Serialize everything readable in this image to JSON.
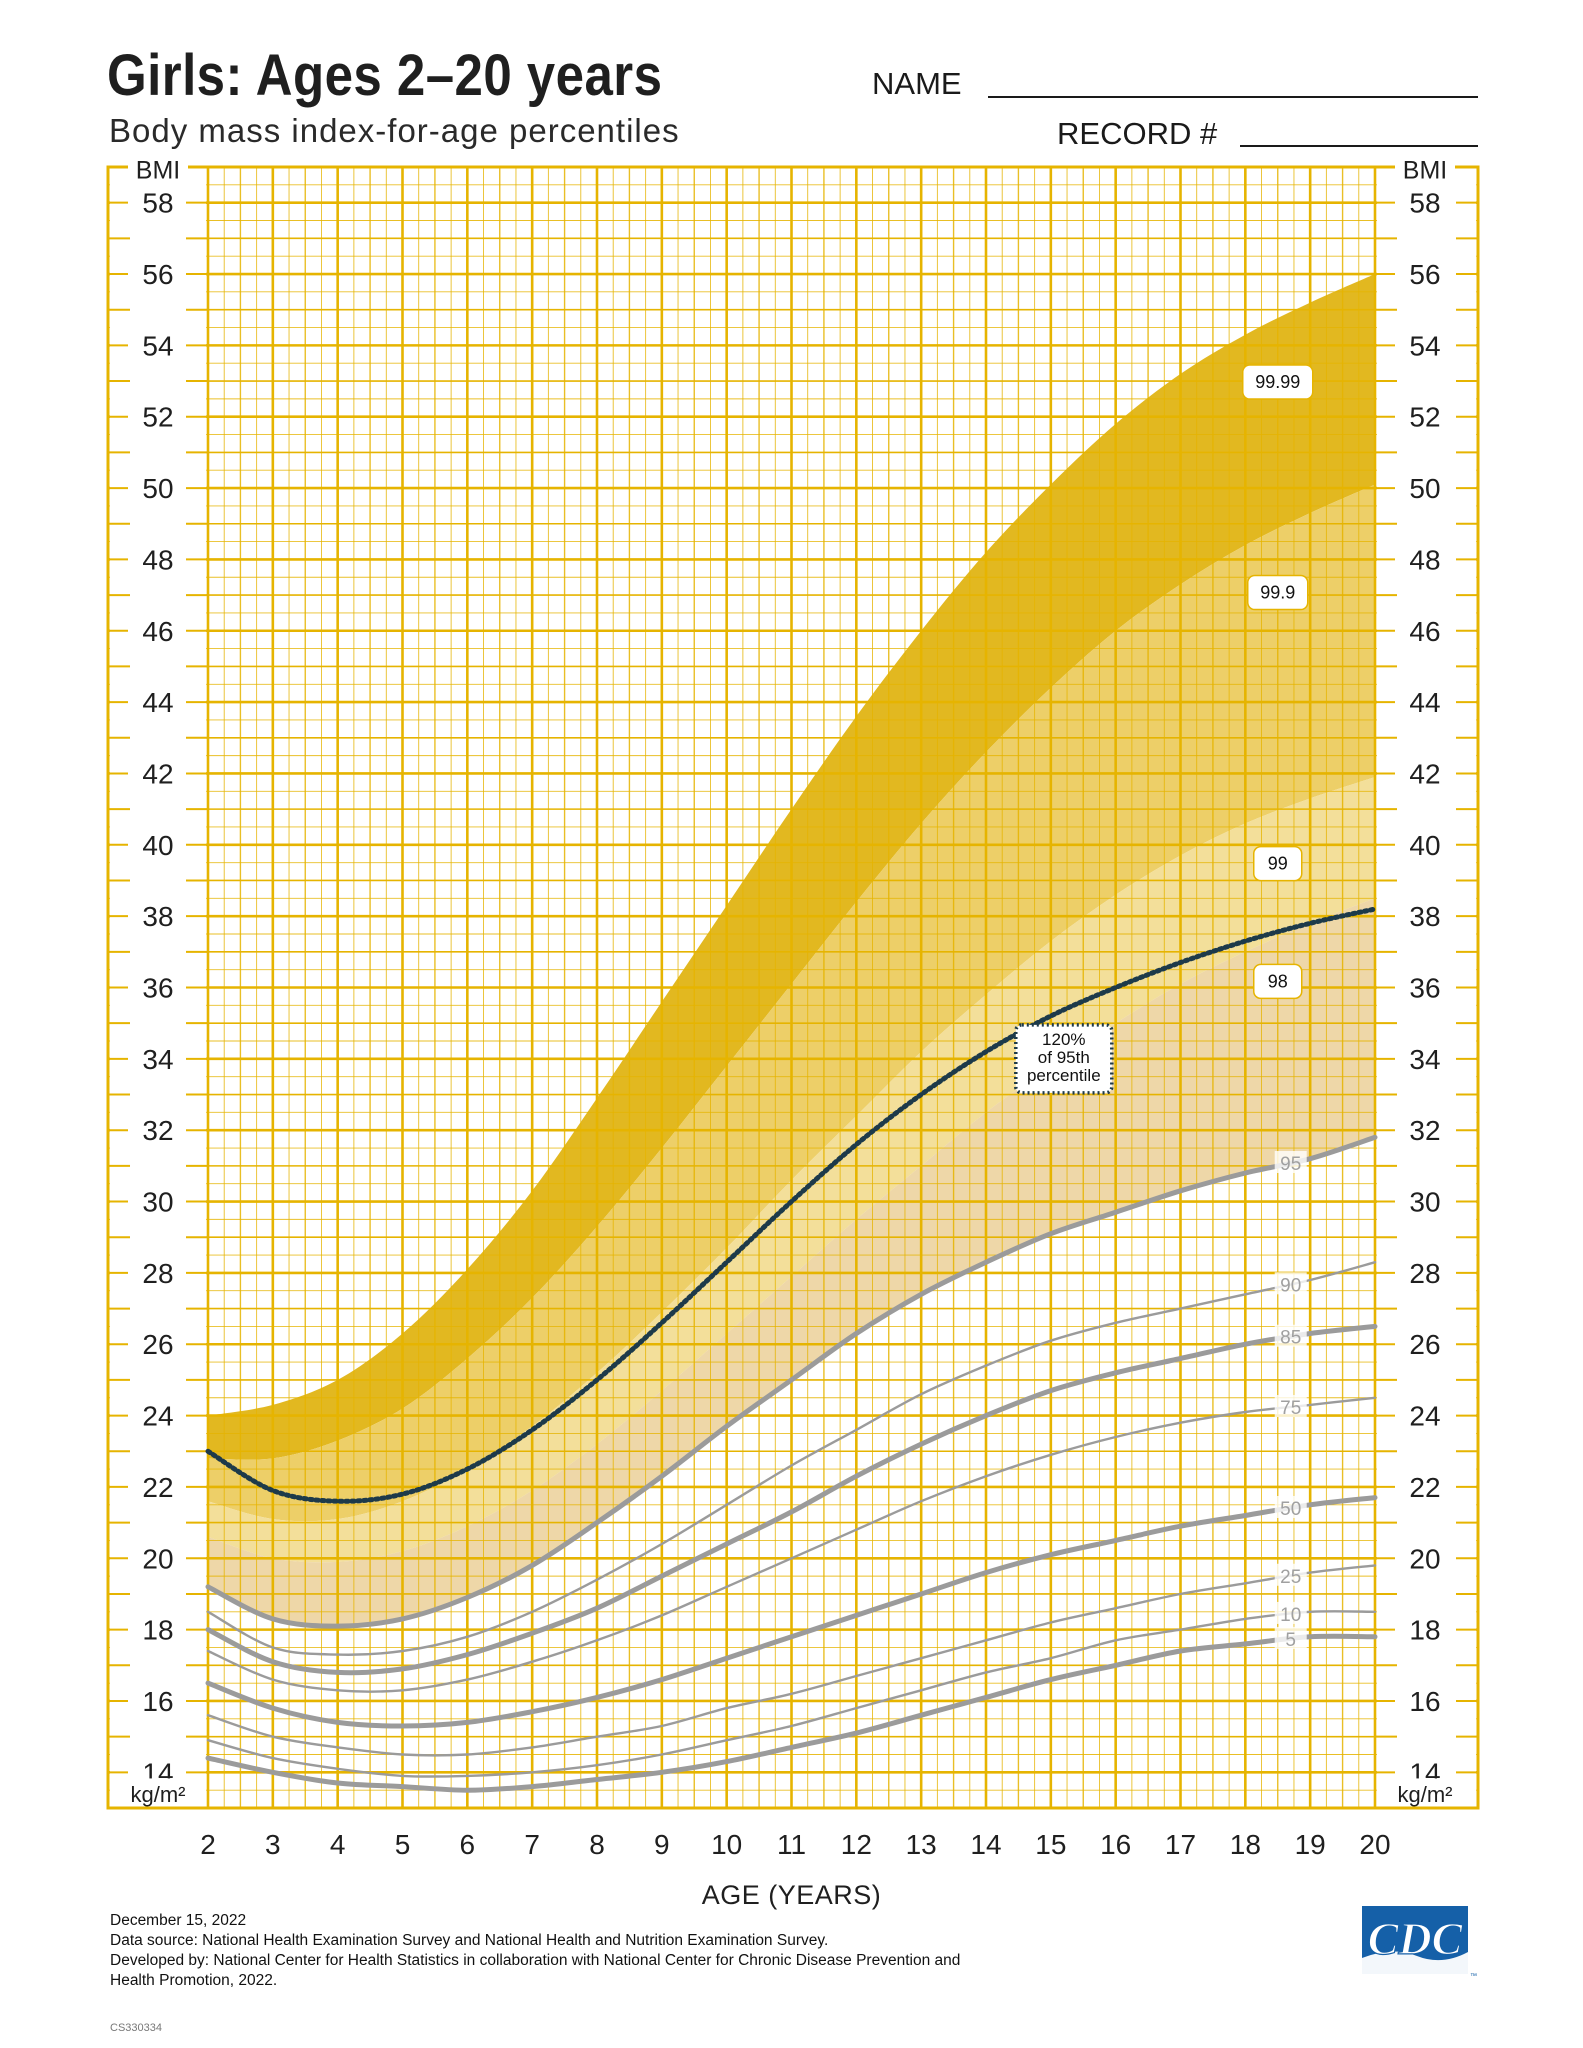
{
  "header": {
    "title": "Girls: Ages 2–20 years",
    "subtitle": "Body mass index-for-age percentiles",
    "name_label": "NAME",
    "record_label": "RECORD #"
  },
  "footer": {
    "date": "December 15, 2022",
    "line1": "Data source: National Health Examination Survey and National Health and Nutrition Examination Survey.",
    "line2": "Developed by: National Center for Health Statistics in collaboration with National Center for Chronic Disease Prevention and",
    "line3": "Health Promotion, 2022.",
    "code": "CS330334",
    "logo_text": "CDC"
  },
  "colors": {
    "grid": "#e6b400",
    "band_top": "#e2b820",
    "band_999": "#edcf68",
    "band_99": "#f3df9a",
    "band_98": "#f7e9bd",
    "band_95": "#ecd3a5",
    "percentile_line": "#9b9b9b",
    "dotted_line": "#1d3a4a",
    "cdc_blue": "#1560a8"
  },
  "chart_data": {
    "type": "line",
    "xlabel": "AGE (YEARS)",
    "ylabel": "BMI",
    "yunit": "kg/m²",
    "xlim": [
      2,
      20
    ],
    "ylim": [
      13,
      59
    ],
    "xticks": [
      2,
      3,
      4,
      5,
      6,
      7,
      8,
      9,
      10,
      11,
      12,
      13,
      14,
      15,
      16,
      17,
      18,
      19,
      20
    ],
    "yticks": [
      14,
      16,
      18,
      20,
      22,
      24,
      26,
      28,
      30,
      32,
      34,
      36,
      38,
      40,
      42,
      44,
      46,
      48,
      50,
      52,
      54,
      56,
      58
    ],
    "ages": [
      2,
      3,
      4,
      5,
      6,
      7,
      8,
      9,
      10,
      11,
      12,
      13,
      14,
      15,
      16,
      17,
      18,
      19,
      20
    ],
    "series": [
      {
        "name": "99.99",
        "values": [
          24.0,
          24.3,
          25.0,
          26.3,
          28.1,
          30.3,
          32.9,
          35.6,
          38.3,
          41.0,
          43.6,
          46.0,
          48.2,
          50.1,
          51.8,
          53.2,
          54.3,
          55.2,
          56.0
        ]
      },
      {
        "name": "99.9",
        "values": [
          22.8,
          22.8,
          23.3,
          24.2,
          25.6,
          27.3,
          29.3,
          31.5,
          33.8,
          36.1,
          38.4,
          40.6,
          42.6,
          44.4,
          46.0,
          47.3,
          48.4,
          49.3,
          50.1
        ]
      },
      {
        "name": "99",
        "values": [
          21.6,
          21.1,
          21.1,
          21.6,
          22.5,
          23.7,
          25.2,
          26.9,
          28.7,
          30.6,
          32.4,
          34.2,
          35.8,
          37.3,
          38.6,
          39.7,
          40.6,
          41.3,
          41.9
        ]
      },
      {
        "name": "98",
        "values": [
          20.6,
          20.0,
          19.9,
          20.2,
          20.9,
          21.9,
          23.2,
          24.7,
          26.3,
          27.9,
          29.5,
          31.0,
          32.5,
          33.8,
          35.0,
          36.1,
          37.0,
          37.8,
          38.5
        ]
      },
      {
        "name": "120% of 95th percentile",
        "values": [
          23.0,
          21.9,
          21.6,
          21.8,
          22.5,
          23.6,
          25.0,
          26.6,
          28.3,
          30.0,
          31.6,
          33.0,
          34.2,
          35.2,
          36.0,
          36.7,
          37.3,
          37.8,
          38.2
        ]
      },
      {
        "name": "95",
        "values": [
          19.2,
          18.3,
          18.1,
          18.3,
          18.9,
          19.8,
          21.0,
          22.3,
          23.7,
          25.0,
          26.3,
          27.4,
          28.3,
          29.1,
          29.7,
          30.3,
          30.8,
          31.2,
          31.8
        ]
      },
      {
        "name": "90",
        "values": [
          18.5,
          17.5,
          17.3,
          17.4,
          17.8,
          18.5,
          19.4,
          20.4,
          21.5,
          22.6,
          23.6,
          24.6,
          25.4,
          26.1,
          26.6,
          27.0,
          27.4,
          27.8,
          28.3
        ]
      },
      {
        "name": "85",
        "values": [
          18.0,
          17.1,
          16.8,
          16.9,
          17.3,
          17.9,
          18.6,
          19.5,
          20.4,
          21.3,
          22.3,
          23.2,
          24.0,
          24.7,
          25.2,
          25.6,
          26.0,
          26.3,
          26.5
        ]
      },
      {
        "name": "75",
        "values": [
          17.4,
          16.6,
          16.3,
          16.3,
          16.6,
          17.1,
          17.7,
          18.4,
          19.2,
          20.0,
          20.8,
          21.6,
          22.3,
          22.9,
          23.4,
          23.8,
          24.1,
          24.3,
          24.5
        ]
      },
      {
        "name": "50",
        "values": [
          16.5,
          15.8,
          15.4,
          15.3,
          15.4,
          15.7,
          16.1,
          16.6,
          17.2,
          17.8,
          18.4,
          19.0,
          19.6,
          20.1,
          20.5,
          20.9,
          21.2,
          21.5,
          21.7
        ]
      },
      {
        "name": "25",
        "values": [
          15.6,
          15.0,
          14.7,
          14.5,
          14.5,
          14.7,
          15.0,
          15.3,
          15.8,
          16.2,
          16.7,
          17.2,
          17.7,
          18.2,
          18.6,
          19.0,
          19.3,
          19.6,
          19.8
        ]
      },
      {
        "name": "10",
        "values": [
          14.9,
          14.4,
          14.1,
          13.9,
          13.9,
          14.0,
          14.2,
          14.5,
          14.9,
          15.3,
          15.8,
          16.3,
          16.8,
          17.2,
          17.7,
          18.0,
          18.3,
          18.5,
          18.5
        ]
      },
      {
        "name": "5",
        "values": [
          14.4,
          14.0,
          13.7,
          13.6,
          13.5,
          13.6,
          13.8,
          14.0,
          14.3,
          14.7,
          15.1,
          15.6,
          16.1,
          16.6,
          17.0,
          17.4,
          17.6,
          17.8,
          17.8
        ]
      }
    ],
    "label_box": {
      "line1": "120%",
      "line2": "of 95th",
      "line3": "percentile"
    },
    "grid": true
  }
}
